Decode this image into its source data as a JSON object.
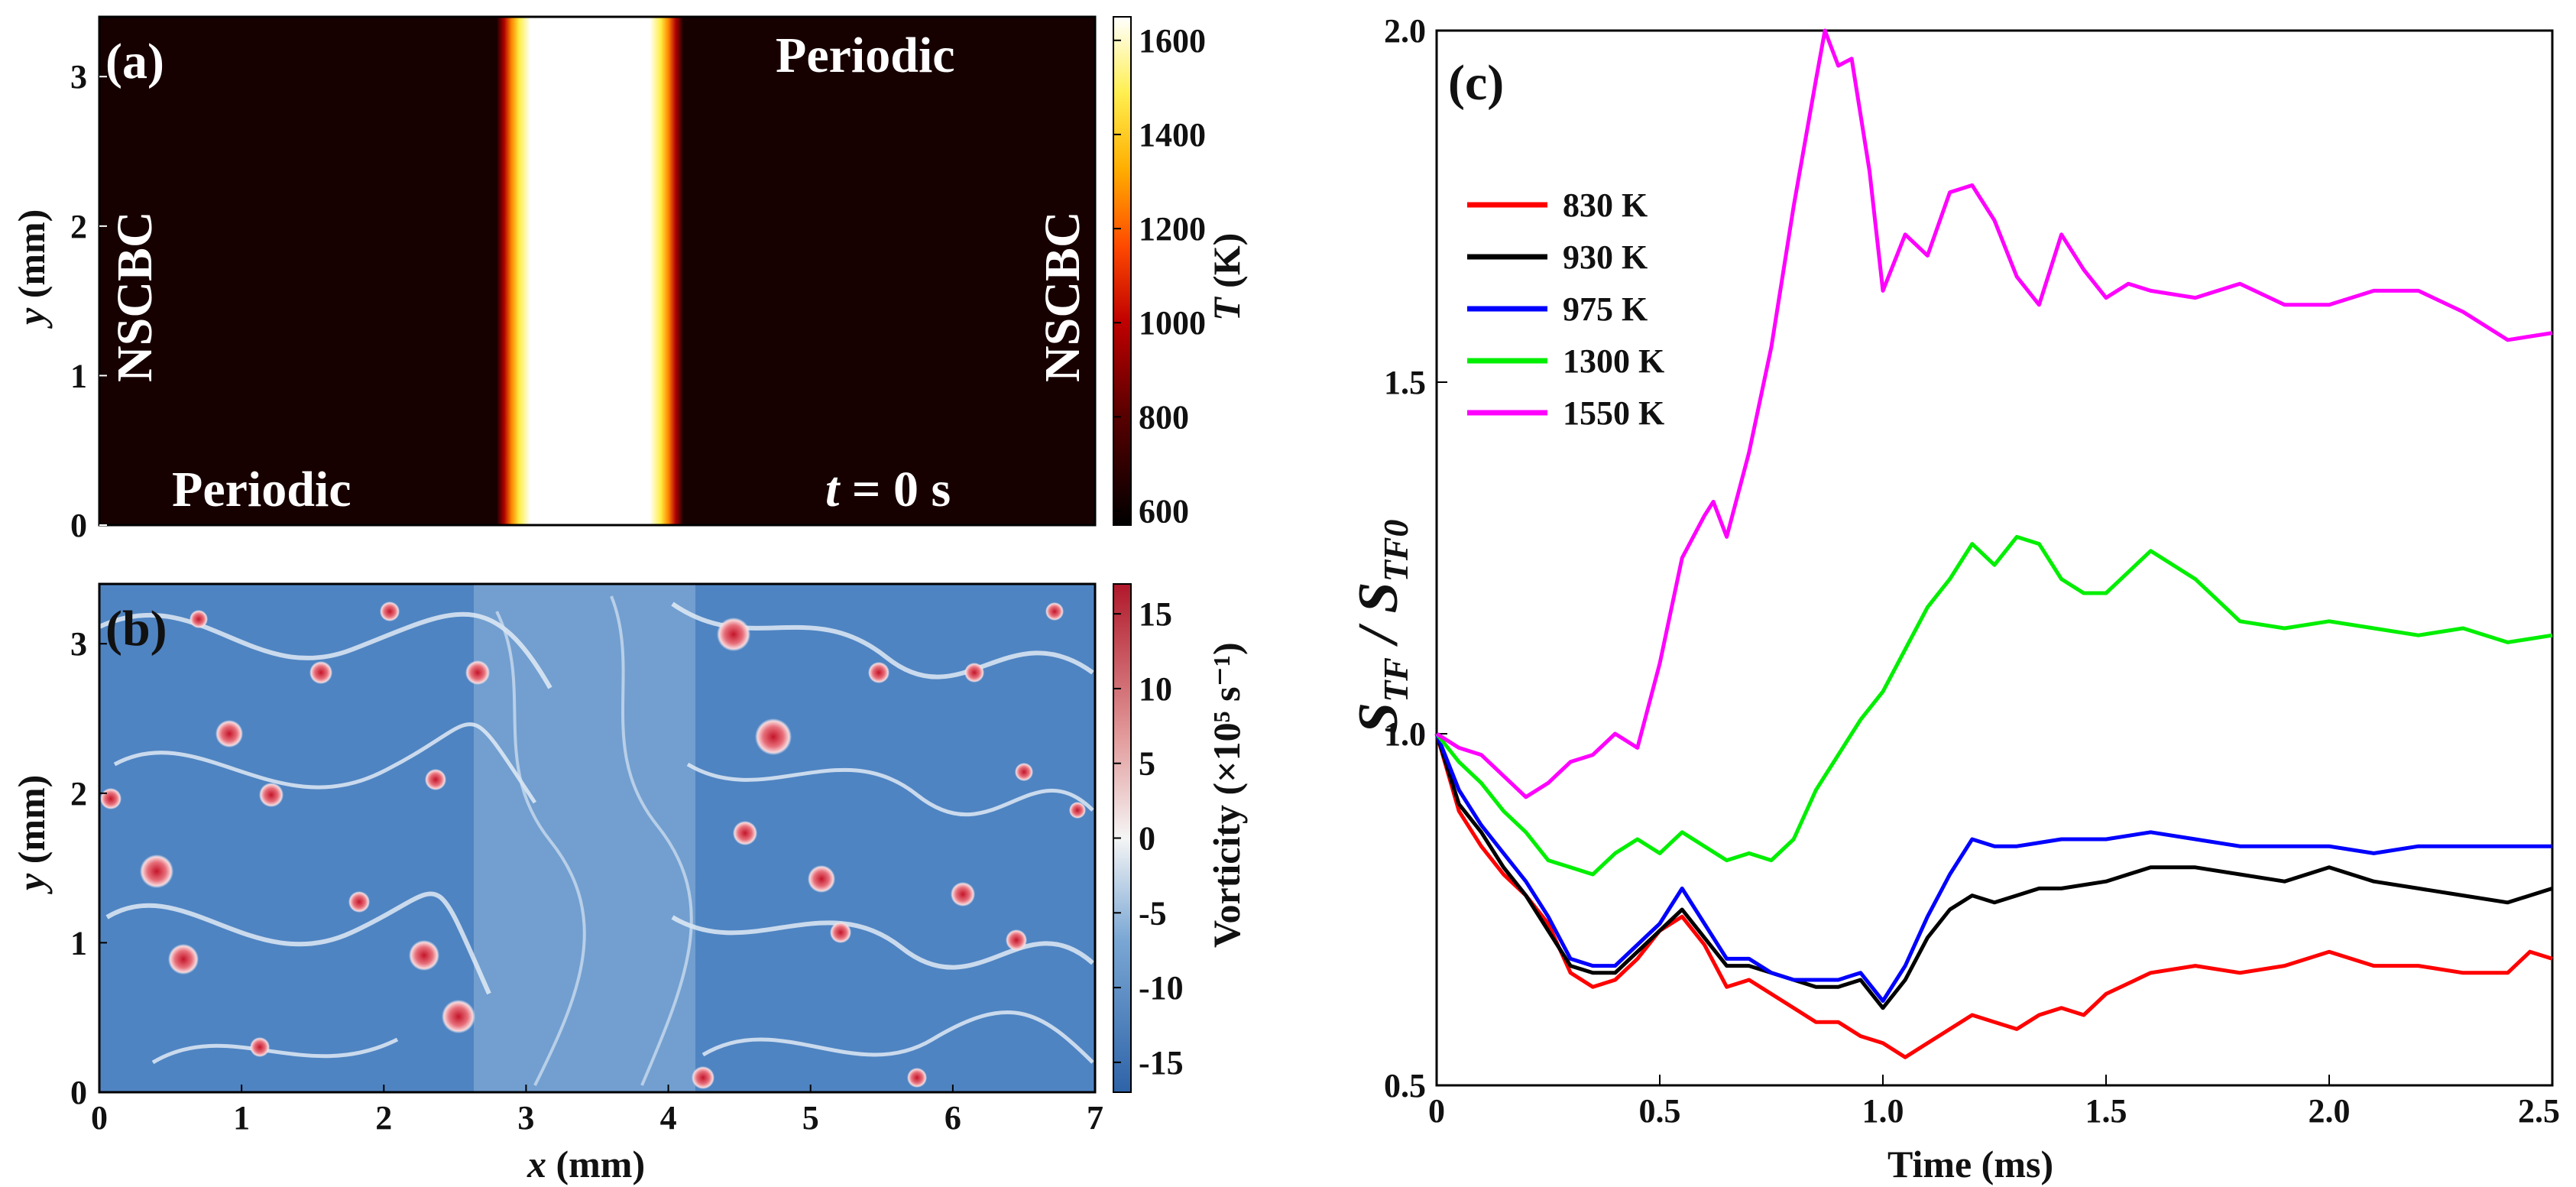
{
  "panel_a": {
    "label": "(a)",
    "xlim": [
      0,
      7
    ],
    "ylim": [
      0,
      3.4
    ],
    "yticks": [
      "0",
      "1",
      "2",
      "3"
    ],
    "ylabel_var": "y",
    "ylabel_unit": " (mm)",
    "hot_region_mm": [
      2.9,
      4.1
    ],
    "colorbar": {
      "label_var": "T",
      "label_unit": " (K)",
      "range": [
        570,
        1650
      ],
      "ticks": [
        "1600",
        "1400",
        "1200",
        "1000",
        "800",
        "600"
      ],
      "tick_values": [
        1600,
        1400,
        1200,
        1000,
        800,
        600
      ]
    },
    "annotations": {
      "periodic_top": "Periodic",
      "periodic_bottom": "Periodic",
      "nscbc_left": "NSCBC",
      "nscbc_right": "NSCBC",
      "time_var": "t",
      "time_rest": " = 0 s"
    }
  },
  "panel_b": {
    "label": "(b)",
    "xticks": [
      "0",
      "1",
      "2",
      "3",
      "4",
      "5",
      "6",
      "7"
    ],
    "yticks": [
      "0",
      "1",
      "2",
      "3"
    ],
    "xlabel_var": "x",
    "xlabel_unit": " (mm)",
    "ylabel_var": "y",
    "ylabel_unit": " (mm)",
    "colorbar": {
      "label": "Vorticity (×10⁵ s⁻¹)",
      "range": [
        -17,
        17
      ],
      "ticks": [
        "15",
        "10",
        "5",
        "0",
        "-5",
        "-10",
        "-15"
      ],
      "tick_values": [
        15,
        10,
        5,
        0,
        -5,
        -10,
        -15
      ]
    }
  },
  "chart_data": {
    "type": "line",
    "label": "(c)",
    "title": "",
    "xlabel": "Time (ms)",
    "ylabel_main": "S",
    "ylabel_sub1": "TF",
    "ylabel_mid": " / S",
    "ylabel_sub2": "TF0",
    "xlim": [
      0,
      2.5
    ],
    "ylim": [
      0.5,
      2.0
    ],
    "xticks": [
      "0",
      "0.5",
      "1.0",
      "1.5",
      "2.0",
      "2.5"
    ],
    "xtick_values": [
      0,
      0.5,
      1.0,
      1.5,
      2.0,
      2.5
    ],
    "yticks": [
      "0.5",
      "1.0",
      "1.5",
      "2.0"
    ],
    "ytick_values": [
      0.5,
      1.0,
      1.5,
      2.0
    ],
    "legend_position": "upper-left",
    "series": [
      {
        "name": "830 K",
        "color": "#ff0000",
        "x": [
          0,
          0.05,
          0.1,
          0.15,
          0.2,
          0.25,
          0.3,
          0.35,
          0.4,
          0.45,
          0.5,
          0.55,
          0.6,
          0.65,
          0.7,
          0.75,
          0.8,
          0.85,
          0.9,
          0.95,
          1.0,
          1.05,
          1.1,
          1.15,
          1.2,
          1.25,
          1.3,
          1.35,
          1.4,
          1.45,
          1.5,
          1.6,
          1.7,
          1.8,
          1.9,
          2.0,
          2.1,
          2.2,
          2.3,
          2.4,
          2.45,
          2.5
        ],
        "y": [
          1.0,
          0.89,
          0.84,
          0.8,
          0.77,
          0.73,
          0.66,
          0.64,
          0.65,
          0.68,
          0.72,
          0.74,
          0.7,
          0.64,
          0.65,
          0.63,
          0.61,
          0.59,
          0.59,
          0.57,
          0.56,
          0.54,
          0.56,
          0.58,
          0.6,
          0.59,
          0.58,
          0.6,
          0.61,
          0.6,
          0.63,
          0.66,
          0.67,
          0.66,
          0.67,
          0.69,
          0.67,
          0.67,
          0.66,
          0.66,
          0.69,
          0.68
        ]
      },
      {
        "name": "930 K",
        "color": "#000000",
        "x": [
          0,
          0.05,
          0.1,
          0.15,
          0.2,
          0.25,
          0.3,
          0.35,
          0.4,
          0.45,
          0.5,
          0.55,
          0.6,
          0.65,
          0.7,
          0.75,
          0.8,
          0.85,
          0.9,
          0.95,
          1.0,
          1.05,
          1.1,
          1.15,
          1.2,
          1.25,
          1.3,
          1.35,
          1.4,
          1.5,
          1.6,
          1.7,
          1.8,
          1.9,
          2.0,
          2.05,
          2.1,
          2.2,
          2.3,
          2.4,
          2.5
        ],
        "y": [
          1.0,
          0.9,
          0.86,
          0.81,
          0.77,
          0.72,
          0.67,
          0.66,
          0.66,
          0.69,
          0.72,
          0.75,
          0.71,
          0.67,
          0.67,
          0.66,
          0.65,
          0.64,
          0.64,
          0.65,
          0.61,
          0.65,
          0.71,
          0.75,
          0.77,
          0.76,
          0.77,
          0.78,
          0.78,
          0.79,
          0.81,
          0.81,
          0.8,
          0.79,
          0.81,
          0.8,
          0.79,
          0.78,
          0.77,
          0.76,
          0.78
        ]
      },
      {
        "name": "975 K",
        "color": "#0000ff",
        "x": [
          0,
          0.05,
          0.1,
          0.15,
          0.2,
          0.25,
          0.3,
          0.35,
          0.4,
          0.45,
          0.5,
          0.55,
          0.6,
          0.65,
          0.7,
          0.75,
          0.8,
          0.85,
          0.9,
          0.95,
          1.0,
          1.05,
          1.1,
          1.15,
          1.2,
          1.25,
          1.3,
          1.4,
          1.5,
          1.6,
          1.7,
          1.8,
          1.9,
          2.0,
          2.1,
          2.2,
          2.3,
          2.4,
          2.5
        ],
        "y": [
          1.0,
          0.92,
          0.87,
          0.83,
          0.79,
          0.74,
          0.68,
          0.67,
          0.67,
          0.7,
          0.73,
          0.78,
          0.73,
          0.68,
          0.68,
          0.66,
          0.65,
          0.65,
          0.65,
          0.66,
          0.62,
          0.67,
          0.74,
          0.8,
          0.85,
          0.84,
          0.84,
          0.85,
          0.85,
          0.86,
          0.85,
          0.84,
          0.84,
          0.84,
          0.83,
          0.84,
          0.84,
          0.84,
          0.84
        ]
      },
      {
        "name": "1300 K",
        "color": "#00ee00",
        "x": [
          0,
          0.05,
          0.1,
          0.15,
          0.2,
          0.25,
          0.3,
          0.35,
          0.4,
          0.45,
          0.5,
          0.55,
          0.6,
          0.65,
          0.7,
          0.75,
          0.8,
          0.85,
          0.9,
          0.95,
          1.0,
          1.05,
          1.1,
          1.15,
          1.2,
          1.25,
          1.3,
          1.35,
          1.4,
          1.45,
          1.5,
          1.55,
          1.6,
          1.7,
          1.8,
          1.9,
          2.0,
          2.1,
          2.2,
          2.3,
          2.4,
          2.5
        ],
        "y": [
          1.0,
          0.96,
          0.93,
          0.89,
          0.86,
          0.82,
          0.81,
          0.8,
          0.83,
          0.85,
          0.83,
          0.86,
          0.84,
          0.82,
          0.83,
          0.82,
          0.85,
          0.92,
          0.97,
          1.02,
          1.06,
          1.12,
          1.18,
          1.22,
          1.27,
          1.24,
          1.28,
          1.27,
          1.22,
          1.2,
          1.2,
          1.23,
          1.26,
          1.22,
          1.16,
          1.15,
          1.16,
          1.15,
          1.14,
          1.15,
          1.13,
          1.14
        ]
      },
      {
        "name": "1550 K",
        "color": "#ff00ff",
        "x": [
          0,
          0.05,
          0.1,
          0.15,
          0.2,
          0.25,
          0.3,
          0.35,
          0.4,
          0.45,
          0.5,
          0.55,
          0.6,
          0.62,
          0.65,
          0.7,
          0.75,
          0.8,
          0.85,
          0.87,
          0.9,
          0.93,
          0.97,
          1.0,
          1.05,
          1.1,
          1.15,
          1.2,
          1.25,
          1.3,
          1.35,
          1.4,
          1.45,
          1.5,
          1.55,
          1.6,
          1.7,
          1.8,
          1.9,
          2.0,
          2.1,
          2.2,
          2.3,
          2.4,
          2.5
        ],
        "y": [
          1.0,
          0.98,
          0.97,
          0.94,
          0.91,
          0.93,
          0.96,
          0.97,
          1.0,
          0.98,
          1.1,
          1.25,
          1.31,
          1.33,
          1.28,
          1.4,
          1.55,
          1.75,
          1.93,
          2.0,
          1.95,
          1.96,
          1.8,
          1.63,
          1.71,
          1.68,
          1.77,
          1.78,
          1.73,
          1.65,
          1.61,
          1.71,
          1.66,
          1.62,
          1.64,
          1.63,
          1.62,
          1.64,
          1.61,
          1.61,
          1.63,
          1.63,
          1.6,
          1.56,
          1.57
        ]
      }
    ]
  }
}
